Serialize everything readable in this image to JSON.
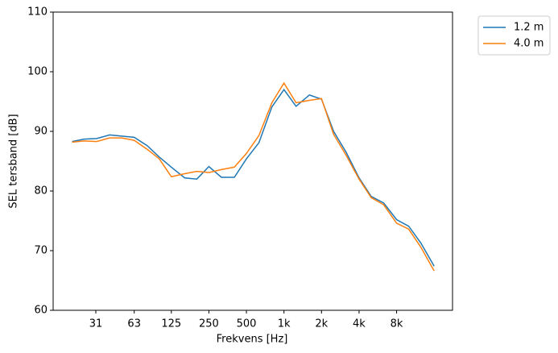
{
  "chart_data": {
    "type": "line",
    "xlabel": "Frekvens [Hz]",
    "ylabel": "SEL tersband [dB]",
    "x": [
      20,
      25,
      31.5,
      40,
      50,
      63,
      80,
      100,
      125,
      160,
      200,
      250,
      315,
      400,
      500,
      630,
      800,
      1000,
      1250,
      1600,
      2000,
      2500,
      3150,
      4000,
      5000,
      6300,
      8000,
      10000,
      12500,
      16000
    ],
    "series": [
      {
        "name": "1.2 m",
        "color": "#1f77b4",
        "values": [
          88.3,
          88.7,
          88.8,
          89.4,
          89.2,
          89.0,
          87.6,
          85.7,
          84.0,
          82.2,
          82.0,
          84.1,
          82.3,
          82.3,
          85.4,
          88.1,
          94.1,
          97.0,
          94.2,
          96.1,
          95.4,
          90.0,
          86.5,
          82.2,
          79.1,
          78.0,
          75.2,
          74.1,
          71.3,
          67.4
        ]
      },
      {
        "name": "4.0 m",
        "color": "#ff7f0e",
        "values": [
          88.2,
          88.4,
          88.3,
          88.9,
          88.9,
          88.5,
          87.0,
          85.4,
          82.4,
          82.9,
          83.3,
          83.1,
          83.6,
          84.0,
          86.3,
          89.3,
          94.8,
          98.1,
          94.8,
          95.2,
          95.5,
          89.5,
          86.0,
          82.0,
          78.9,
          77.7,
          74.6,
          73.6,
          70.6,
          66.6
        ]
      }
    ],
    "xscale": "log",
    "xlim": [
      14.1,
      22460
    ],
    "xticks": [
      31,
      63,
      125,
      250,
      500,
      {
        "value": 1000,
        "label": "1k"
      },
      {
        "value": 2000,
        "label": "2k"
      },
      {
        "value": 4000,
        "label": "4k"
      },
      {
        "value": 8000,
        "label": "8k"
      }
    ],
    "ylim": [
      60,
      110
    ],
    "yticks": [
      60,
      70,
      80,
      90,
      100,
      110
    ],
    "legend": "outside-upper-right"
  }
}
